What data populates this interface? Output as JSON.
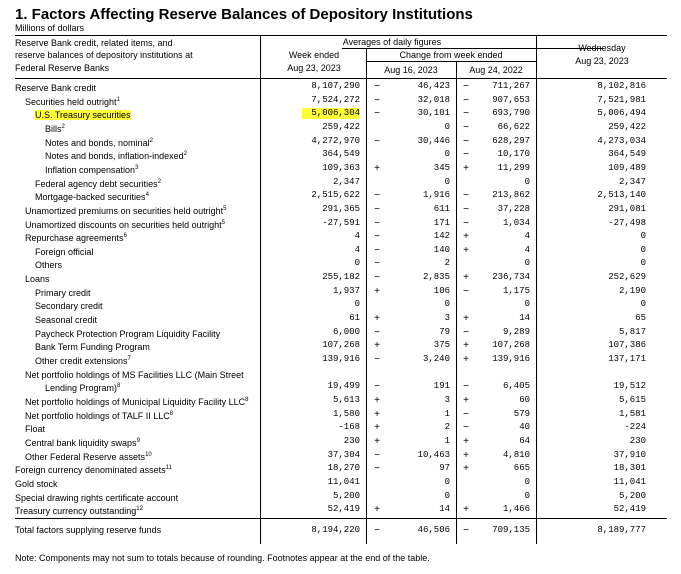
{
  "title": "1. Factors Affecting Reserve Balances of Depository Institutions",
  "units": "Millions of dollars",
  "header": {
    "rowlabel": [
      "Reserve Bank credit, related items, and",
      "reserve balances of depository institutions at",
      "Federal Reserve Banks"
    ],
    "averages": "Averages of daily figures",
    "week_ended": [
      "Week ended",
      "Aug 23, 2023"
    ],
    "change": "Change from week ended",
    "aug16": "Aug 16, 2023",
    "aug24": "Aug 24, 2022",
    "wednesday": [
      "Wednesday",
      "Aug 23, 2023"
    ]
  },
  "rows": [
    {
      "label": "Reserve Bank credit",
      "indent": 0,
      "sup": "",
      "week": "8,107,290",
      "s1": "−",
      "c1": "46,423",
      "s2": "−",
      "c2": "711,267",
      "wed": "8,102,816"
    },
    {
      "label": "Securities held outright",
      "indent": 1,
      "sup": "1",
      "week": "7,524,272",
      "s1": "−",
      "c1": "32,018",
      "s2": "−",
      "c2": "907,653",
      "wed": "7,521,981"
    },
    {
      "label": "U.S. Treasury securities",
      "indent": 2,
      "sup": "",
      "week": "5,006,304",
      "s1": "−",
      "c1": "30,101",
      "s2": "−",
      "c2": "693,790",
      "wed": "5,006,494",
      "highlight": true
    },
    {
      "label": "Bills",
      "indent": 3,
      "sup": "2",
      "week": "259,422",
      "s1": "",
      "c1": "0",
      "s2": "−",
      "c2": "66,622",
      "wed": "259,422"
    },
    {
      "label": "Notes and bonds, nominal",
      "indent": 3,
      "sup": "2",
      "week": "4,272,970",
      "s1": "−",
      "c1": "30,446",
      "s2": "−",
      "c2": "628,297",
      "wed": "4,273,034"
    },
    {
      "label": "Notes and bonds, inflation-indexed",
      "indent": 3,
      "sup": "2",
      "week": "364,549",
      "s1": "",
      "c1": "0",
      "s2": "−",
      "c2": "10,170",
      "wed": "364,549"
    },
    {
      "label": "Inflation compensation",
      "indent": 3,
      "sup": "3",
      "week": "109,363",
      "s1": "+",
      "c1": "345",
      "s2": "+",
      "c2": "11,299",
      "wed": "109,489"
    },
    {
      "label": "Federal agency debt securities",
      "indent": 2,
      "sup": "2",
      "week": "2,347",
      "s1": "",
      "c1": "0",
      "s2": "",
      "c2": "0",
      "wed": "2,347"
    },
    {
      "label": "Mortgage-backed securities",
      "indent": 2,
      "sup": "4",
      "week": "2,515,622",
      "s1": "−",
      "c1": "1,916",
      "s2": "−",
      "c2": "213,862",
      "wed": "2,513,140"
    },
    {
      "label": "Unamortized premiums on securities held outright",
      "indent": 1,
      "sup": "5",
      "week": "291,365",
      "s1": "−",
      "c1": "611",
      "s2": "−",
      "c2": "37,228",
      "wed": "291,081"
    },
    {
      "label": "Unamortized discounts on securities held outright",
      "indent": 1,
      "sup": "5",
      "week": "-27,591",
      "s1": "−",
      "c1": "171",
      "s2": "−",
      "c2": "1,034",
      "wed": "-27,498"
    },
    {
      "label": "Repurchase agreements",
      "indent": 1,
      "sup": "6",
      "week": "4",
      "s1": "−",
      "c1": "142",
      "s2": "+",
      "c2": "4",
      "wed": "0"
    },
    {
      "label": "Foreign official",
      "indent": 2,
      "sup": "",
      "week": "4",
      "s1": "−",
      "c1": "140",
      "s2": "+",
      "c2": "4",
      "wed": "0"
    },
    {
      "label": "Others",
      "indent": 2,
      "sup": "",
      "week": "0",
      "s1": "−",
      "c1": "2",
      "s2": "",
      "c2": "0",
      "wed": "0"
    },
    {
      "label": "Loans",
      "indent": 1,
      "sup": "",
      "week": "255,182",
      "s1": "−",
      "c1": "2,835",
      "s2": "+",
      "c2": "236,734",
      "wed": "252,629"
    },
    {
      "label": "Primary credit",
      "indent": 2,
      "sup": "",
      "week": "1,937",
      "s1": "+",
      "c1": "106",
      "s2": "−",
      "c2": "1,175",
      "wed": "2,190"
    },
    {
      "label": "Secondary credit",
      "indent": 2,
      "sup": "",
      "week": "0",
      "s1": "",
      "c1": "0",
      "s2": "",
      "c2": "0",
      "wed": "0"
    },
    {
      "label": "Seasonal credit",
      "indent": 2,
      "sup": "",
      "week": "61",
      "s1": "+",
      "c1": "3",
      "s2": "+",
      "c2": "14",
      "wed": "65"
    },
    {
      "label": "Paycheck Protection Program Liquidity Facility",
      "indent": 2,
      "sup": "",
      "week": "6,000",
      "s1": "−",
      "c1": "79",
      "s2": "−",
      "c2": "9,289",
      "wed": "5,817"
    },
    {
      "label": "Bank Term Funding Program",
      "indent": 2,
      "sup": "",
      "week": "107,268",
      "s1": "+",
      "c1": "375",
      "s2": "+",
      "c2": "107,268",
      "wed": "107,386"
    },
    {
      "label": "Other credit extensions",
      "indent": 2,
      "sup": "7",
      "week": "139,916",
      "s1": "−",
      "c1": "3,240",
      "s2": "+",
      "c2": "139,916",
      "wed": "137,171"
    },
    {
      "label": "Net portfolio holdings of MS Facilities LLC (Main Street",
      "indent": 1,
      "sup": "",
      "week": "",
      "s1": "",
      "c1": "",
      "s2": "",
      "c2": "",
      "wed": ""
    },
    {
      "label": "Lending Program)",
      "indent": 3,
      "sup": "8",
      "week": "19,499",
      "s1": "−",
      "c1": "191",
      "s2": "−",
      "c2": "6,405",
      "wed": "19,512"
    },
    {
      "label": "Net portfolio holdings of Municipal Liquidity Facility LLC",
      "indent": 1,
      "sup": "8",
      "week": "5,613",
      "s1": "+",
      "c1": "3",
      "s2": "+",
      "c2": "60",
      "wed": "5,615"
    },
    {
      "label": "Net portfolio holdings of TALF II LLC",
      "indent": 1,
      "sup": "8",
      "week": "1,580",
      "s1": "+",
      "c1": "1",
      "s2": "−",
      "c2": "579",
      "wed": "1,581"
    },
    {
      "label": "Float",
      "indent": 1,
      "sup": "",
      "week": "-168",
      "s1": "+",
      "c1": "2",
      "s2": "−",
      "c2": "40",
      "wed": "-224"
    },
    {
      "label": "Central bank liquidity swaps",
      "indent": 1,
      "sup": "9",
      "week": "230",
      "s1": "+",
      "c1": "1",
      "s2": "+",
      "c2": "64",
      "wed": "230"
    },
    {
      "label": "Other Federal Reserve assets",
      "indent": 1,
      "sup": "10",
      "week": "37,304",
      "s1": "−",
      "c1": "10,463",
      "s2": "+",
      "c2": "4,810",
      "wed": "37,910"
    },
    {
      "label": "Foreign currency denominated assets",
      "indent": 0,
      "sup": "11",
      "week": "18,270",
      "s1": "−",
      "c1": "97",
      "s2": "+",
      "c2": "665",
      "wed": "18,301"
    },
    {
      "label": "Gold stock",
      "indent": 0,
      "sup": "",
      "week": "11,041",
      "s1": "",
      "c1": "0",
      "s2": "",
      "c2": "0",
      "wed": "11,041"
    },
    {
      "label": "Special drawing rights certificate account",
      "indent": 0,
      "sup": "",
      "week": "5,200",
      "s1": "",
      "c1": "0",
      "s2": "",
      "c2": "0",
      "wed": "5,200"
    },
    {
      "label": "Treasury currency outstanding",
      "indent": 0,
      "sup": "12",
      "week": "52,419",
      "s1": "+",
      "c1": "14",
      "s2": "+",
      "c2": "1,466",
      "wed": "52,419"
    }
  ],
  "total": {
    "label": "Total factors supplying reserve funds",
    "week": "8,194,220",
    "s1": "−",
    "c1": "46,506",
    "s2": "−",
    "c2": "709,135",
    "wed": "8,189,777"
  },
  "note": "Note: Components may not sum to totals because of rounding. Footnotes appear at the end of the table.",
  "colors": {
    "highlight": "#ffff3a"
  }
}
